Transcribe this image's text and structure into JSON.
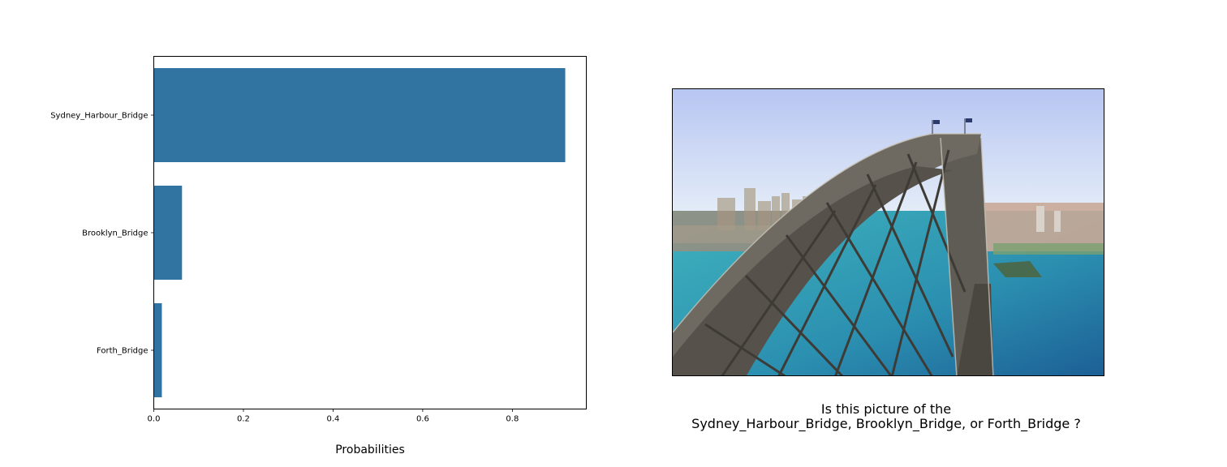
{
  "chart_data": {
    "type": "bar",
    "orientation": "horizontal",
    "categories": [
      "Sydney_Harbour_Bridge",
      "Brooklyn_Bridge",
      "Forth_Bridge"
    ],
    "values": [
      0.918,
      0.063,
      0.018
    ],
    "xlabel": "Probabilities",
    "ylabel": "",
    "xlim": [
      0,
      0.965
    ],
    "xticks": [
      0.0,
      0.2,
      0.4,
      0.6,
      0.8
    ],
    "grid": false,
    "bar_color": "#3274a1"
  },
  "photo": {
    "subject": "bridge-photo"
  },
  "question": {
    "line1": "Is this picture of the",
    "line2": "Sydney_Harbour_Bridge, Brooklyn_Bridge, or Forth_Bridge ?"
  }
}
